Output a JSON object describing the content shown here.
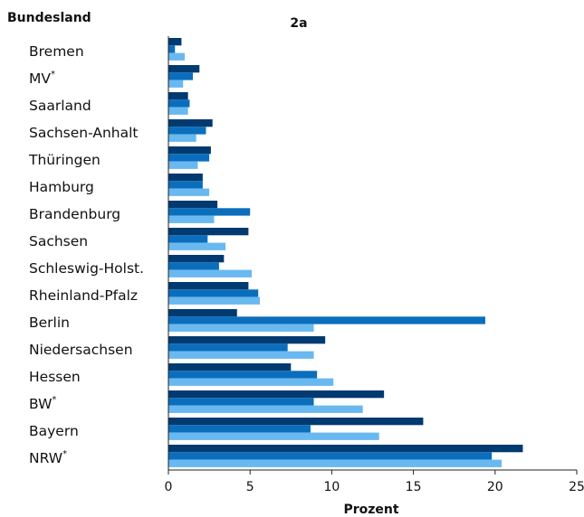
{
  "chart_data": {
    "type": "bar",
    "orientation": "horizontal",
    "title": "2a",
    "ylabel": "Bundesland",
    "xlabel": "Prozent",
    "xlim": [
      0,
      25
    ],
    "xticks": [
      "0",
      "5",
      "10",
      "15",
      "20",
      "25"
    ],
    "grid": false,
    "legend": "none",
    "categories": [
      {
        "name": "Bremen",
        "sup": ""
      },
      {
        "name": "MV",
        "sup": "*"
      },
      {
        "name": "Saarland",
        "sup": ""
      },
      {
        "name": "Sachsen-Anhalt",
        "sup": ""
      },
      {
        "name": "Thüringen",
        "sup": ""
      },
      {
        "name": "Hamburg",
        "sup": ""
      },
      {
        "name": "Brandenburg",
        "sup": ""
      },
      {
        "name": "Sachsen",
        "sup": ""
      },
      {
        "name": "Schleswig-Holst.",
        "sup": ""
      },
      {
        "name": "Rheinland-Pfalz",
        "sup": ""
      },
      {
        "name": "Berlin",
        "sup": ""
      },
      {
        "name": "Niedersachsen",
        "sup": ""
      },
      {
        "name": "Hessen",
        "sup": ""
      },
      {
        "name": "BW",
        "sup": "*"
      },
      {
        "name": "Bayern",
        "sup": ""
      },
      {
        "name": "NRW",
        "sup": "*"
      }
    ],
    "series": [
      {
        "color": "#003a70",
        "values": [
          0.8,
          1.9,
          1.2,
          2.7,
          2.6,
          2.1,
          3.0,
          4.9,
          3.4,
          4.9,
          4.2,
          9.6,
          7.5,
          13.2,
          15.6,
          21.7
        ]
      },
      {
        "color": "#0a6ebd",
        "values": [
          0.4,
          1.5,
          1.3,
          2.3,
          2.5,
          2.1,
          5.0,
          2.4,
          3.1,
          5.5,
          19.4,
          7.3,
          9.1,
          8.9,
          8.7,
          19.8
        ]
      },
      {
        "color": "#6ab8f0",
        "values": [
          1.0,
          0.9,
          1.2,
          1.7,
          1.8,
          2.5,
          2.8,
          3.5,
          5.1,
          5.6,
          8.9,
          8.9,
          10.1,
          11.9,
          12.9,
          20.4
        ]
      }
    ]
  }
}
